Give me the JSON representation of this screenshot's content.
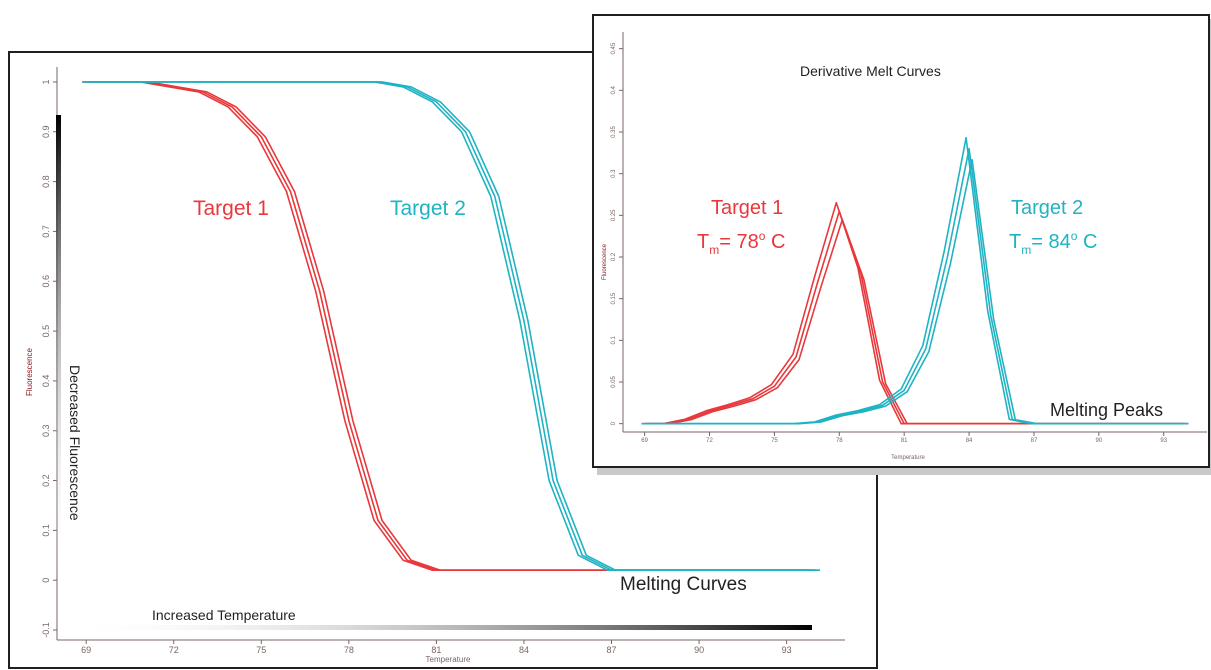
{
  "colors": {
    "target1": "#e8383b",
    "target2": "#1fb3c3",
    "axis": "#7a6565",
    "frame": "#231f20",
    "ylabel": "#8a1a22"
  },
  "chart_data": [
    {
      "type": "line",
      "title": "",
      "xlabel": "Temperature",
      "ylabel": "Fluorescence",
      "xlim": [
        68,
        95
      ],
      "ylim": [
        -0.12,
        1.03
      ],
      "xticks": [
        69,
        72,
        75,
        78,
        81,
        84,
        87,
        90,
        93
      ],
      "yticks": [
        -0.1,
        0,
        0.1,
        0.2,
        0.3,
        0.4,
        0.5,
        0.6,
        0.7,
        0.8,
        0.9,
        1
      ],
      "grid": false,
      "caption": "Melting Curves",
      "arrow_labels": {
        "vertical": "Decreased Fluorescence",
        "horizontal": "Increased Temperature"
      },
      "series": [
        {
          "name": "Target 1",
          "x": [
            69,
            70,
            71,
            72,
            73,
            74,
            75,
            76,
            77,
            78,
            79,
            80,
            81,
            82,
            83,
            84,
            85,
            86,
            87,
            88,
            89,
            90,
            91,
            92,
            93,
            94
          ],
          "y": [
            1,
            1,
            1,
            0.99,
            0.98,
            0.95,
            0.89,
            0.78,
            0.58,
            0.32,
            0.12,
            0.04,
            0.02,
            0.02,
            0.02,
            0.02,
            0.02,
            0.02,
            0.02,
            0.02,
            0.02,
            0.02,
            0.02,
            0.02,
            0.02,
            0.02
          ]
        },
        {
          "name": "Target 2",
          "x": [
            69,
            70,
            71,
            72,
            73,
            74,
            75,
            76,
            77,
            78,
            79,
            80,
            81,
            82,
            83,
            84,
            85,
            86,
            87,
            88,
            89,
            90,
            91,
            92,
            93,
            94
          ],
          "y": [
            1,
            1,
            1,
            1,
            1,
            1,
            1,
            1,
            1,
            1,
            1,
            0.99,
            0.96,
            0.9,
            0.77,
            0.52,
            0.2,
            0.05,
            0.02,
            0.02,
            0.02,
            0.02,
            0.02,
            0.02,
            0.02,
            0.02
          ]
        }
      ],
      "annotations": [
        {
          "series": "Target 1",
          "label": "Target 1"
        },
        {
          "series": "Target 2",
          "label": "Target 2"
        }
      ]
    },
    {
      "type": "line",
      "title": "Derivative Melt Curves",
      "xlabel": "Temperature",
      "ylabel": "Fluorescence",
      "xlim": [
        68,
        95
      ],
      "ylim": [
        -0.01,
        0.47
      ],
      "xticks": [
        69,
        72,
        75,
        78,
        81,
        84,
        87,
        90,
        93
      ],
      "yticks": [
        0,
        0.05,
        0.1,
        0.15,
        0.2,
        0.25,
        0.3,
        0.35,
        0.4,
        0.45
      ],
      "grid": false,
      "caption": "Melting Peaks",
      "series": [
        {
          "name": "Target 1",
          "x": [
            69,
            70,
            71,
            72,
            73,
            74,
            75,
            76,
            77,
            78,
            79,
            80,
            81,
            82,
            83,
            84,
            85,
            86,
            87,
            88,
            89,
            90,
            91,
            92,
            93,
            94
          ],
          "y": [
            0,
            0,
            0.005,
            0.015,
            0.022,
            0.03,
            0.045,
            0.08,
            0.17,
            0.255,
            0.18,
            0.05,
            0,
            0,
            0,
            0,
            0,
            0,
            0,
            0,
            0,
            0,
            0,
            0,
            0,
            0
          ]
        },
        {
          "name": "Target 2",
          "x": [
            69,
            70,
            71,
            72,
            73,
            74,
            75,
            76,
            77,
            78,
            79,
            80,
            81,
            82,
            83,
            84,
            85,
            86,
            87,
            88,
            89,
            90,
            91,
            92,
            93,
            94
          ],
          "y": [
            0,
            0,
            0,
            0,
            0,
            0,
            0,
            0,
            0.002,
            0.01,
            0.015,
            0.022,
            0.04,
            0.09,
            0.2,
            0.33,
            0.13,
            0.005,
            0,
            0,
            0,
            0,
            0,
            0,
            0,
            0
          ]
        }
      ],
      "annotations": [
        {
          "series": "Target 1",
          "label": "Target 1",
          "tm_prefix": "T",
          "tm_sub": "m",
          "tm_value": "= 78",
          "tm_deg": "o",
          "tm_unit": " C"
        },
        {
          "series": "Target 2",
          "label": "Target 2",
          "tm_prefix": "T",
          "tm_sub": "m",
          "tm_value": "= 84",
          "tm_deg": "o",
          "tm_unit": " C"
        }
      ]
    }
  ]
}
